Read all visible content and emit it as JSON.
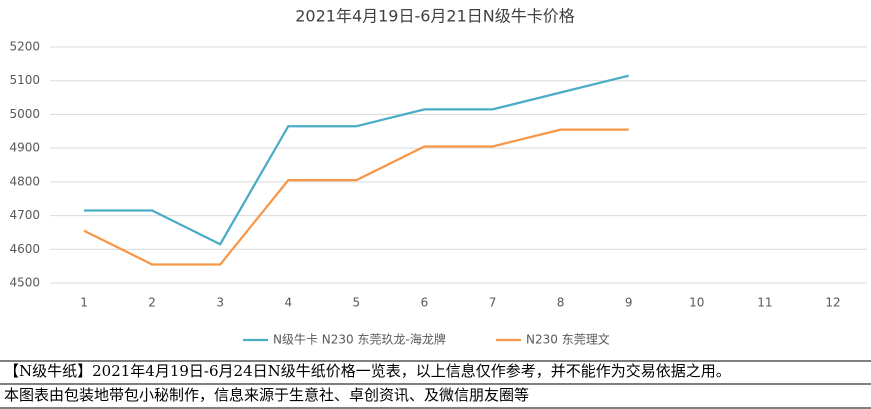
{
  "chart_data": {
    "type": "line",
    "title": "2021年4月19日-6月21日N级牛卡价格",
    "categories": [
      "1",
      "2",
      "3",
      "4",
      "5",
      "6",
      "7",
      "8",
      "9",
      "10",
      "11",
      "12"
    ],
    "series": [
      {
        "name": "N级牛卡 N230 东莞玖龙-海龙牌",
        "color": "#4bacc6",
        "values": [
          4715,
          4715,
          4615,
          4965,
          4965,
          5015,
          5015,
          5065,
          5115,
          null,
          null,
          null
        ]
      },
      {
        "name": "N230 东莞理文",
        "color": "#f79646",
        "values": [
          4655,
          4555,
          4555,
          4805,
          4805,
          4905,
          4905,
          4955,
          4955,
          null,
          null,
          null
        ]
      }
    ],
    "ylim": [
      4500,
      5200
    ],
    "yticks": [
      4500,
      4600,
      4700,
      4800,
      4900,
      5000,
      5100,
      5200
    ],
    "grid": true,
    "legend": "bottom"
  },
  "notes": [
    "【N级牛纸】2021年4月19日-6月24日N级牛纸价格一览表，以上信息仅作参考，并不能作为交易依据之用。",
    "本图表由包装地带包小秘制作，信息来源于生意社、卓创资讯、及微信朋友圈等"
  ]
}
